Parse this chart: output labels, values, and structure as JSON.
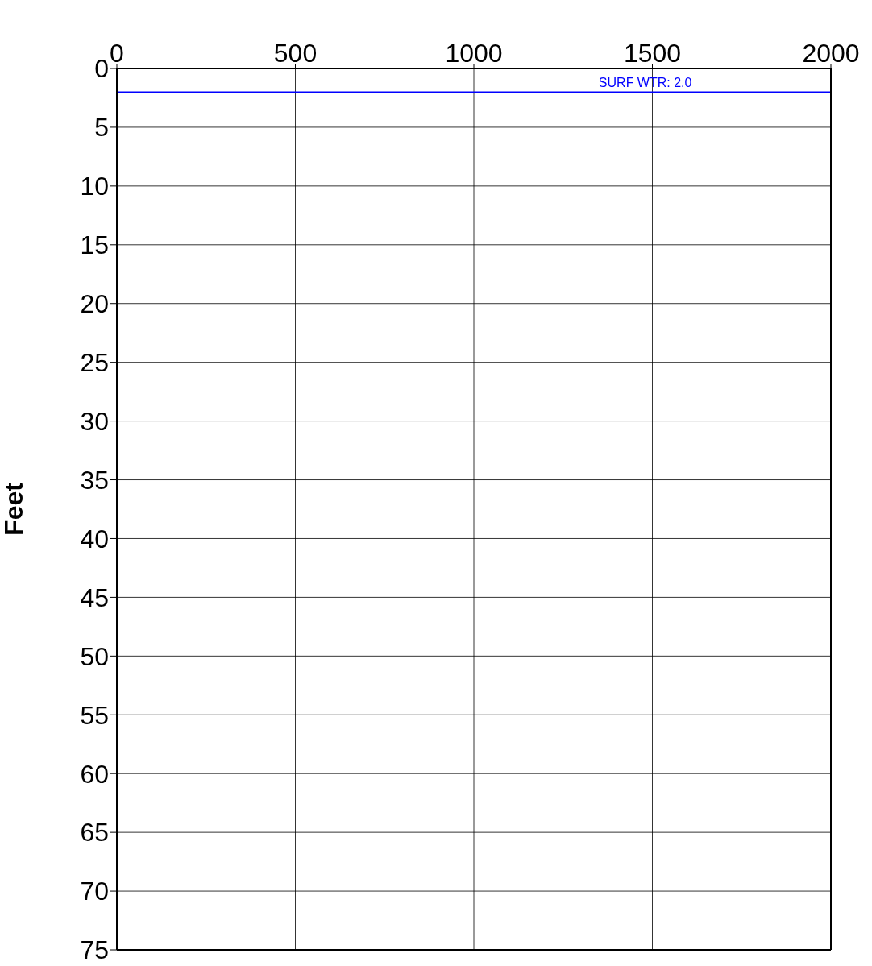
{
  "chart_data": {
    "type": "line",
    "ylabel": "Feet",
    "xlim": [
      0,
      2000
    ],
    "xticks": [
      0,
      500,
      1000,
      1500,
      2000
    ],
    "ylim": [
      75,
      0
    ],
    "yticks": [
      0,
      5,
      10,
      15,
      20,
      25,
      30,
      35,
      40,
      45,
      50,
      55,
      60,
      65,
      70,
      75
    ],
    "grid": true,
    "ref_lines": [
      {
        "axis": "y",
        "value": 2.0,
        "label": "SURF WTR: 2.0",
        "color": "#0000ff"
      }
    ]
  }
}
